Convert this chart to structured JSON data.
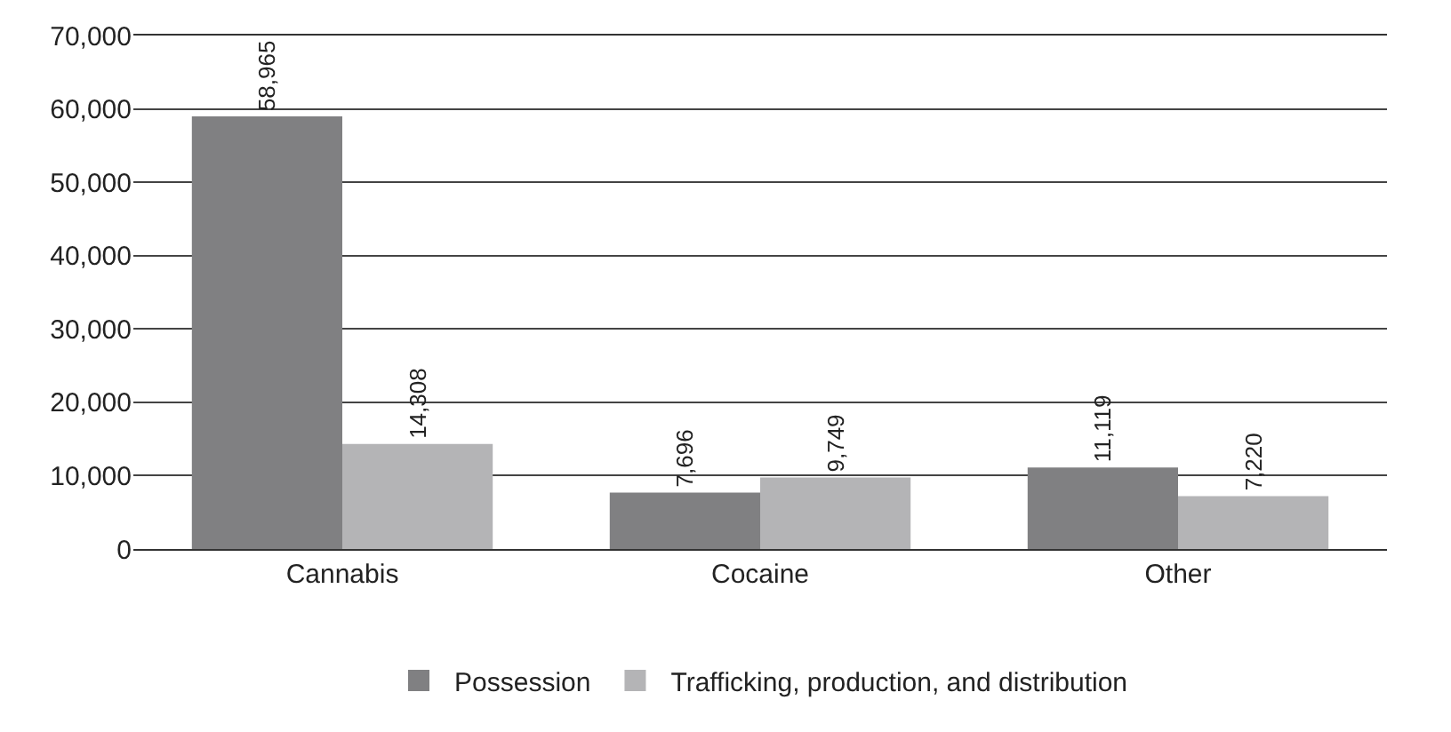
{
  "chart_data": {
    "type": "bar",
    "categories": [
      "Cannabis",
      "Cocaine",
      "Other"
    ],
    "series": [
      {
        "name": "Possession",
        "color": "#808082",
        "values": [
          58965,
          7696,
          11119
        ],
        "value_labels": [
          "58,965",
          "7,696",
          "11,119"
        ]
      },
      {
        "name": "Trafficking, production, and distribution",
        "color": "#b4b4b6",
        "values": [
          14308,
          9749,
          7220
        ],
        "value_labels": [
          "14,308",
          "9,749",
          "7,220"
        ]
      }
    ],
    "ylim": [
      0,
      70000
    ],
    "yticks": [
      {
        "value": 0,
        "label": "0"
      },
      {
        "value": 10000,
        "label": "10,000"
      },
      {
        "value": 20000,
        "label": "20,000"
      },
      {
        "value": 30000,
        "label": "30,000"
      },
      {
        "value": 40000,
        "label": "40,000"
      },
      {
        "value": 50000,
        "label": "50,000"
      },
      {
        "value": 60000,
        "label": "60,000"
      },
      {
        "value": 70000,
        "label": "70,000"
      }
    ],
    "grid": "y",
    "legend": "bottom"
  }
}
